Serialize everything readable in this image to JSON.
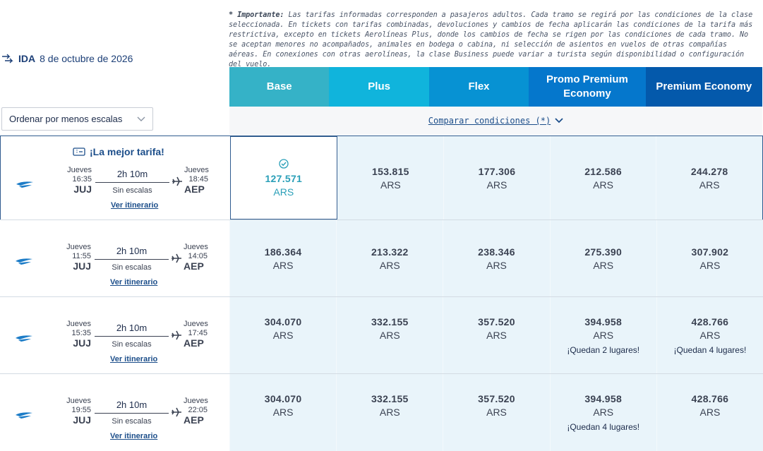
{
  "notice": {
    "label": "* Importante:",
    "text": " Las tarifas informadas corresponden a pasajeros adultos. Cada tramo se regirá por las condiciones de la clase seleccionada. En tickets con tarifas combinadas, devoluciones y cambios de fecha aplicarán las condiciones de la tarifa más restrictiva, excepto en tickets Aerolíneas Plus, donde los cambios de fecha se rigen por las condiciones de cada tramo. No se aceptan menores no acompañados, animales en bodega o cabina, ni selección de asientos en vuelos de otras compañías aéreas. En conexiones con otras aerolíneas, la clase Business puede variar a turista según disponibilidad o configuración del vuelo."
  },
  "trip": {
    "label": "IDA",
    "date": "8 de octubre de 2026"
  },
  "sort": {
    "label": "Ordenar por menos escalas"
  },
  "compare": {
    "label": "Comparar condiciones (*)"
  },
  "fare_headers": [
    {
      "label": "Base",
      "color": "#35b2c7"
    },
    {
      "label": "Plus",
      "color": "#10b4dc"
    },
    {
      "label": "Flex",
      "color": "#0792d3"
    },
    {
      "label": "Promo Premium Economy",
      "color": "#0577cc"
    },
    {
      "label": "Premium Economy",
      "color": "#0459ab"
    }
  ],
  "best_fare_label": "¡La mejor tarifa!",
  "itinerary_label": "Ver itinerario",
  "flights": [
    {
      "dep_day": "Jueves",
      "dep_time": "16:35",
      "dep_code": "JUJ",
      "arr_day": "Jueves",
      "arr_time": "18:45",
      "arr_code": "AEP",
      "duration": "2h 10m",
      "stops": "Sin escalas",
      "fares": [
        {
          "price": "127.571",
          "currency": "ARS",
          "seats": ""
        },
        {
          "price": "153.815",
          "currency": "ARS",
          "seats": ""
        },
        {
          "price": "177.306",
          "currency": "ARS",
          "seats": ""
        },
        {
          "price": "212.586",
          "currency": "ARS",
          "seats": ""
        },
        {
          "price": "244.278",
          "currency": "ARS",
          "seats": ""
        }
      ]
    },
    {
      "dep_day": "Jueves",
      "dep_time": "11:55",
      "dep_code": "JUJ",
      "arr_day": "Jueves",
      "arr_time": "14:05",
      "arr_code": "AEP",
      "duration": "2h 10m",
      "stops": "Sin escalas",
      "fares": [
        {
          "price": "186.364",
          "currency": "ARS",
          "seats": ""
        },
        {
          "price": "213.322",
          "currency": "ARS",
          "seats": ""
        },
        {
          "price": "238.346",
          "currency": "ARS",
          "seats": ""
        },
        {
          "price": "275.390",
          "currency": "ARS",
          "seats": ""
        },
        {
          "price": "307.902",
          "currency": "ARS",
          "seats": ""
        }
      ]
    },
    {
      "dep_day": "Jueves",
      "dep_time": "15:35",
      "dep_code": "JUJ",
      "arr_day": "Jueves",
      "arr_time": "17:45",
      "arr_code": "AEP",
      "duration": "2h 10m",
      "stops": "Sin escalas",
      "fares": [
        {
          "price": "304.070",
          "currency": "ARS",
          "seats": ""
        },
        {
          "price": "332.155",
          "currency": "ARS",
          "seats": ""
        },
        {
          "price": "357.520",
          "currency": "ARS",
          "seats": ""
        },
        {
          "price": "394.958",
          "currency": "ARS",
          "seats": "¡Quedan 2 lugares!"
        },
        {
          "price": "428.766",
          "currency": "ARS",
          "seats": "¡Quedan 4 lugares!"
        }
      ]
    },
    {
      "dep_day": "Jueves",
      "dep_time": "19:55",
      "dep_code": "JUJ",
      "arr_day": "Jueves",
      "arr_time": "22:05",
      "arr_code": "AEP",
      "duration": "2h 10m",
      "stops": "Sin escalas",
      "fares": [
        {
          "price": "304.070",
          "currency": "ARS",
          "seats": ""
        },
        {
          "price": "332.155",
          "currency": "ARS",
          "seats": ""
        },
        {
          "price": "357.520",
          "currency": "ARS",
          "seats": ""
        },
        {
          "price": "394.958",
          "currency": "ARS",
          "seats": "¡Quedan 4 lugares!"
        },
        {
          "price": "428.766",
          "currency": "ARS",
          "seats": ""
        }
      ]
    }
  ],
  "icons": {
    "plane_takeoff": "plane-takeoff-icon",
    "airline": "aerolineas-logo-icon",
    "ticket": "ticket-icon",
    "check": "check-circle-icon",
    "plane": "plane-icon",
    "chevron": "chevron-down-icon"
  }
}
